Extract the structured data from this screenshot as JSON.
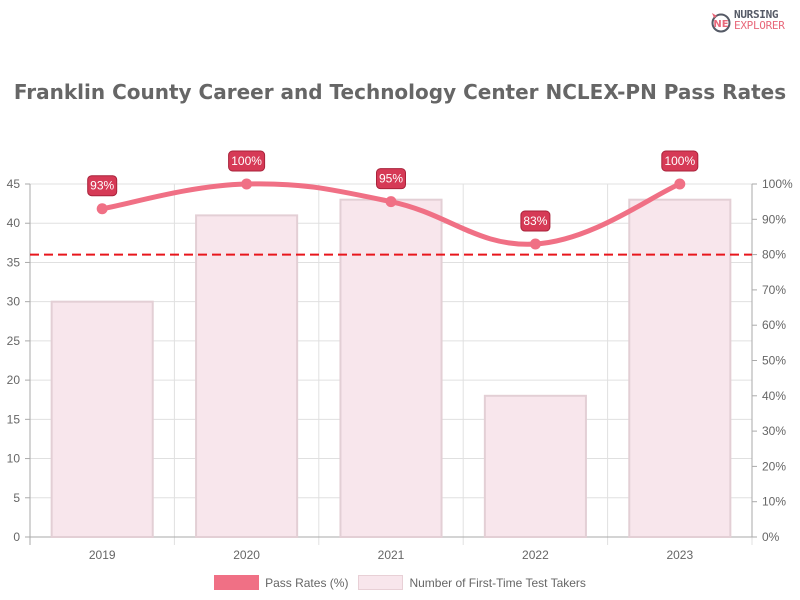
{
  "brand": {
    "line1": "NURSING",
    "line2": "EXPLORER"
  },
  "chart_data": {
    "type": "bar",
    "title": "Franklin County Career and Technology Center NCLEX-PN Pass Rates",
    "categories": [
      "2019",
      "2020",
      "2021",
      "2022",
      "2023"
    ],
    "series": [
      {
        "name": "Pass Rates (%)",
        "type": "line",
        "axis": "right",
        "values": [
          93,
          100,
          95,
          83,
          100
        ],
        "labels": [
          "93%",
          "100%",
          "95%",
          "83%",
          "100%"
        ],
        "color": "#f07085"
      },
      {
        "name": "Number of First-Time Test Takers",
        "type": "bar",
        "axis": "left",
        "values": [
          30,
          41,
          43,
          18,
          43
        ],
        "color": "#f8e6ec"
      }
    ],
    "reference_line": {
      "value": 80,
      "axis": "right",
      "style": "dashed",
      "color": "#e8161c"
    },
    "y_left": {
      "min": 0,
      "max": 45,
      "ticks": [
        "0",
        "5",
        "10",
        "15",
        "20",
        "25",
        "30",
        "35",
        "40",
        "45"
      ]
    },
    "y_right": {
      "min": 0,
      "max": 100,
      "ticks": [
        "0%",
        "10%",
        "20%",
        "30%",
        "40%",
        "50%",
        "60%",
        "70%",
        "80%",
        "90%",
        "100%"
      ]
    },
    "xlabel": "",
    "ylabel": "",
    "grid": true,
    "legend_position": "bottom"
  },
  "legend": {
    "items": [
      {
        "label": "Pass Rates (%)"
      },
      {
        "label": "Number of First-Time Test Takers"
      }
    ]
  }
}
